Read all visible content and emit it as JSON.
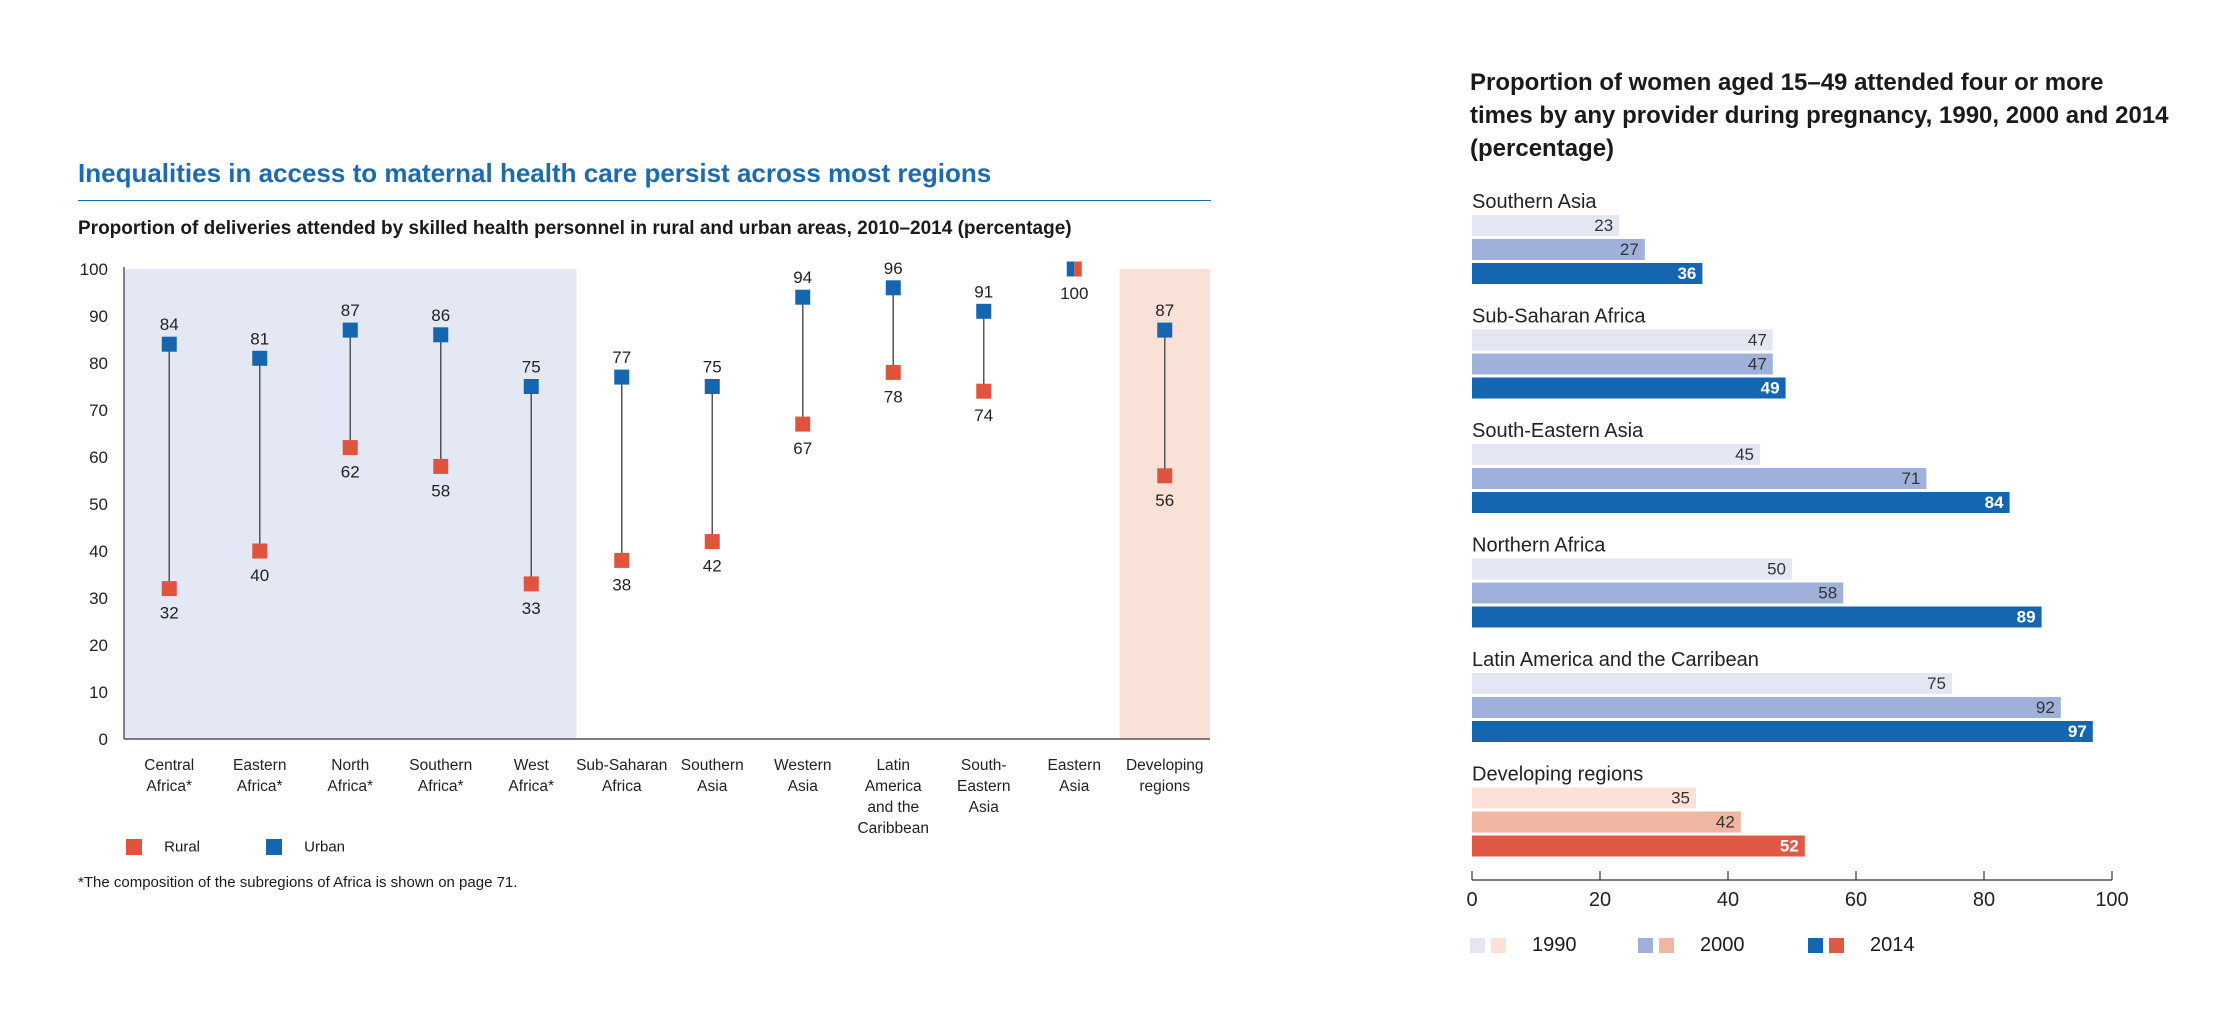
{
  "left": {
    "title": "Inequalities in access to maternal health care persist across most regions",
    "subtitle": "Proportion of deliveries attended by skilled health personnel in rural and urban areas, 2010–2014 (percentage)",
    "footnote": "*The composition of the subregions of Africa is shown on page 71.",
    "legend": [
      {
        "label": "Rural",
        "color": "#e0533d"
      },
      {
        "label": "Urban",
        "color": "#1466b0"
      }
    ]
  },
  "right": {
    "title": "Proportion of women aged 15–49 attended four or more times by any provider during pregnancy, 1990, 2000 and 2014 (percentage)",
    "legend": [
      {
        "label": "1990",
        "colors": [
          "#e4e7f3",
          "#fbe1d8"
        ]
      },
      {
        "label": "2000",
        "colors": [
          "#9fb1da",
          "#efb6a2"
        ]
      },
      {
        "label": "2014",
        "colors": [
          "#1466b0",
          "#de5a44"
        ]
      }
    ]
  },
  "chart_data": [
    {
      "type": "scatter",
      "title": "Proportion of deliveries attended by skilled health personnel in rural and urban areas, 2010–2014 (percentage)",
      "ylim": [
        0,
        100
      ],
      "yticks": [
        "0",
        "10",
        "20",
        "30",
        "40",
        "50",
        "60",
        "70",
        "80",
        "90",
        "100"
      ],
      "categories": [
        {
          "label": [
            "Central",
            "Africa*"
          ],
          "rural": 32,
          "urban": 84
        },
        {
          "label": [
            "Eastern",
            "Africa*"
          ],
          "rural": 40,
          "urban": 81
        },
        {
          "label": [
            "North",
            "Africa*"
          ],
          "rural": 62,
          "urban": 87
        },
        {
          "label": [
            "Southern",
            "Africa*"
          ],
          "rural": 58,
          "urban": 86
        },
        {
          "label": [
            "West",
            "Africa*"
          ],
          "rural": 33,
          "urban": 75
        },
        {
          "label": [
            "Sub-Saharan",
            "Africa"
          ],
          "rural": 38,
          "urban": 77
        },
        {
          "label": [
            "Southern",
            "Asia"
          ],
          "rural": 42,
          "urban": 75
        },
        {
          "label": [
            "Western",
            "Asia"
          ],
          "rural": 67,
          "urban": 94
        },
        {
          "label": [
            "Latin",
            "America",
            "and the",
            "Caribbean"
          ],
          "rural": 78,
          "urban": 96
        },
        {
          "label": [
            "South-",
            "Eastern",
            "Asia"
          ],
          "rural": 74,
          "urban": 91
        },
        {
          "label": [
            "Eastern",
            "Asia"
          ],
          "rural": 100,
          "urban": 100,
          "shared_label": "100"
        },
        {
          "label": [
            "Developing",
            "regions"
          ],
          "rural": 56,
          "urban": 87
        }
      ],
      "series": [
        {
          "name": "Rural",
          "color": "#e0533d"
        },
        {
          "name": "Urban",
          "color": "#1466b0"
        }
      ],
      "shaded_groups": [
        {
          "from": 0,
          "to": 4,
          "color": "#e4e7f4"
        },
        {
          "from": 11,
          "to": 11,
          "color": "#f9e1d8"
        }
      ]
    },
    {
      "type": "bar",
      "orientation": "horizontal",
      "title": "Proportion of women aged 15–49 attended four or more times by any provider during pregnancy, 1990, 2000 and 2014 (percentage)",
      "xlim": [
        0,
        100
      ],
      "xticks": [
        "0",
        "20",
        "40",
        "60",
        "80",
        "100"
      ],
      "series_names": [
        "1990",
        "2000",
        "2014"
      ],
      "groups": [
        {
          "label": "Southern Asia",
          "values": [
            23,
            27,
            36
          ],
          "colors": [
            "#e4e7f3",
            "#9fb1da",
            "#1466b0"
          ]
        },
        {
          "label": "Sub-Saharan Africa",
          "values": [
            47,
            47,
            49
          ],
          "colors": [
            "#e4e7f3",
            "#9fb1da",
            "#1466b0"
          ]
        },
        {
          "label": "South-Eastern Asia",
          "values": [
            45,
            71,
            84
          ],
          "colors": [
            "#e4e7f3",
            "#9fb1da",
            "#1466b0"
          ]
        },
        {
          "label": "Northern Africa",
          "values": [
            50,
            58,
            89
          ],
          "colors": [
            "#e4e7f3",
            "#9fb1da",
            "#1466b0"
          ]
        },
        {
          "label": "Latin America and the Carribean",
          "values": [
            75,
            92,
            97
          ],
          "colors": [
            "#e4e7f3",
            "#9fb1da",
            "#1466b0"
          ]
        },
        {
          "label": "Developing regions",
          "values": [
            35,
            42,
            52
          ],
          "colors": [
            "#fbe1d8",
            "#efb6a2",
            "#de5a44"
          ]
        }
      ]
    }
  ]
}
